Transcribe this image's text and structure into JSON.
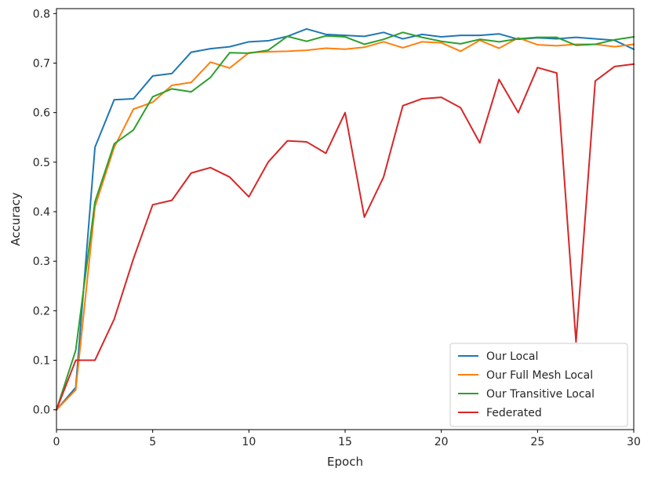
{
  "chart_data": {
    "type": "line",
    "xlabel": "Epoch",
    "ylabel": "Accuracy",
    "xlim": [
      0,
      30
    ],
    "ylim": [
      -0.04,
      0.81
    ],
    "x_ticks": [
      0,
      5,
      10,
      15,
      20,
      25,
      30
    ],
    "x_tick_labels": [
      "0",
      "5",
      "10",
      "15",
      "20",
      "25",
      "30"
    ],
    "y_ticks": [
      0.0,
      0.1,
      0.2,
      0.3,
      0.4,
      0.5,
      0.6,
      0.7,
      0.8
    ],
    "y_tick_labels": [
      "0.0",
      "0.1",
      "0.2",
      "0.3",
      "0.4",
      "0.5",
      "0.6",
      "0.7",
      "0.8"
    ],
    "grid": false,
    "legend_position": "bottom-right",
    "x": [
      0,
      1,
      2,
      3,
      4,
      5,
      6,
      7,
      8,
      9,
      10,
      11,
      12,
      13,
      14,
      15,
      16,
      17,
      18,
      19,
      20,
      21,
      22,
      23,
      24,
      25,
      26,
      27,
      28,
      29,
      30
    ],
    "series": [
      {
        "name": "Our Local",
        "color": "#1f77b4",
        "values": [
          0.0,
          0.045,
          0.53,
          0.626,
          0.628,
          0.674,
          0.679,
          0.722,
          0.729,
          0.733,
          0.743,
          0.745,
          0.754,
          0.769,
          0.758,
          0.756,
          0.754,
          0.762,
          0.749,
          0.758,
          0.753,
          0.756,
          0.756,
          0.759,
          0.748,
          0.751,
          0.749,
          0.752,
          0.749,
          0.746,
          0.728
        ]
      },
      {
        "name": "Our Full Mesh Local",
        "color": "#ff7f0e",
        "values": [
          0.0,
          0.04,
          0.41,
          0.53,
          0.607,
          0.621,
          0.655,
          0.661,
          0.702,
          0.69,
          0.721,
          0.723,
          0.724,
          0.726,
          0.73,
          0.728,
          0.732,
          0.743,
          0.731,
          0.743,
          0.741,
          0.724,
          0.746,
          0.73,
          0.751,
          0.737,
          0.735,
          0.738,
          0.738,
          0.733,
          0.738
        ]
      },
      {
        "name": "Our Transitive Local",
        "color": "#2ca02c",
        "values": [
          0.0,
          0.12,
          0.42,
          0.537,
          0.565,
          0.632,
          0.648,
          0.642,
          0.671,
          0.721,
          0.72,
          0.726,
          0.754,
          0.744,
          0.755,
          0.753,
          0.738,
          0.748,
          0.762,
          0.752,
          0.744,
          0.739,
          0.748,
          0.743,
          0.749,
          0.752,
          0.752,
          0.736,
          0.738,
          0.747,
          0.753
        ]
      },
      {
        "name": "Federated",
        "color": "#d62728",
        "values": [
          0.0,
          0.1,
          0.1,
          0.183,
          0.305,
          0.414,
          0.423,
          0.478,
          0.489,
          0.47,
          0.43,
          0.5,
          0.543,
          0.541,
          0.518,
          0.6,
          0.389,
          0.47,
          0.614,
          0.628,
          0.631,
          0.61,
          0.539,
          0.667,
          0.6,
          0.691,
          0.68,
          0.137,
          0.664,
          0.693,
          0.698
        ]
      }
    ]
  }
}
